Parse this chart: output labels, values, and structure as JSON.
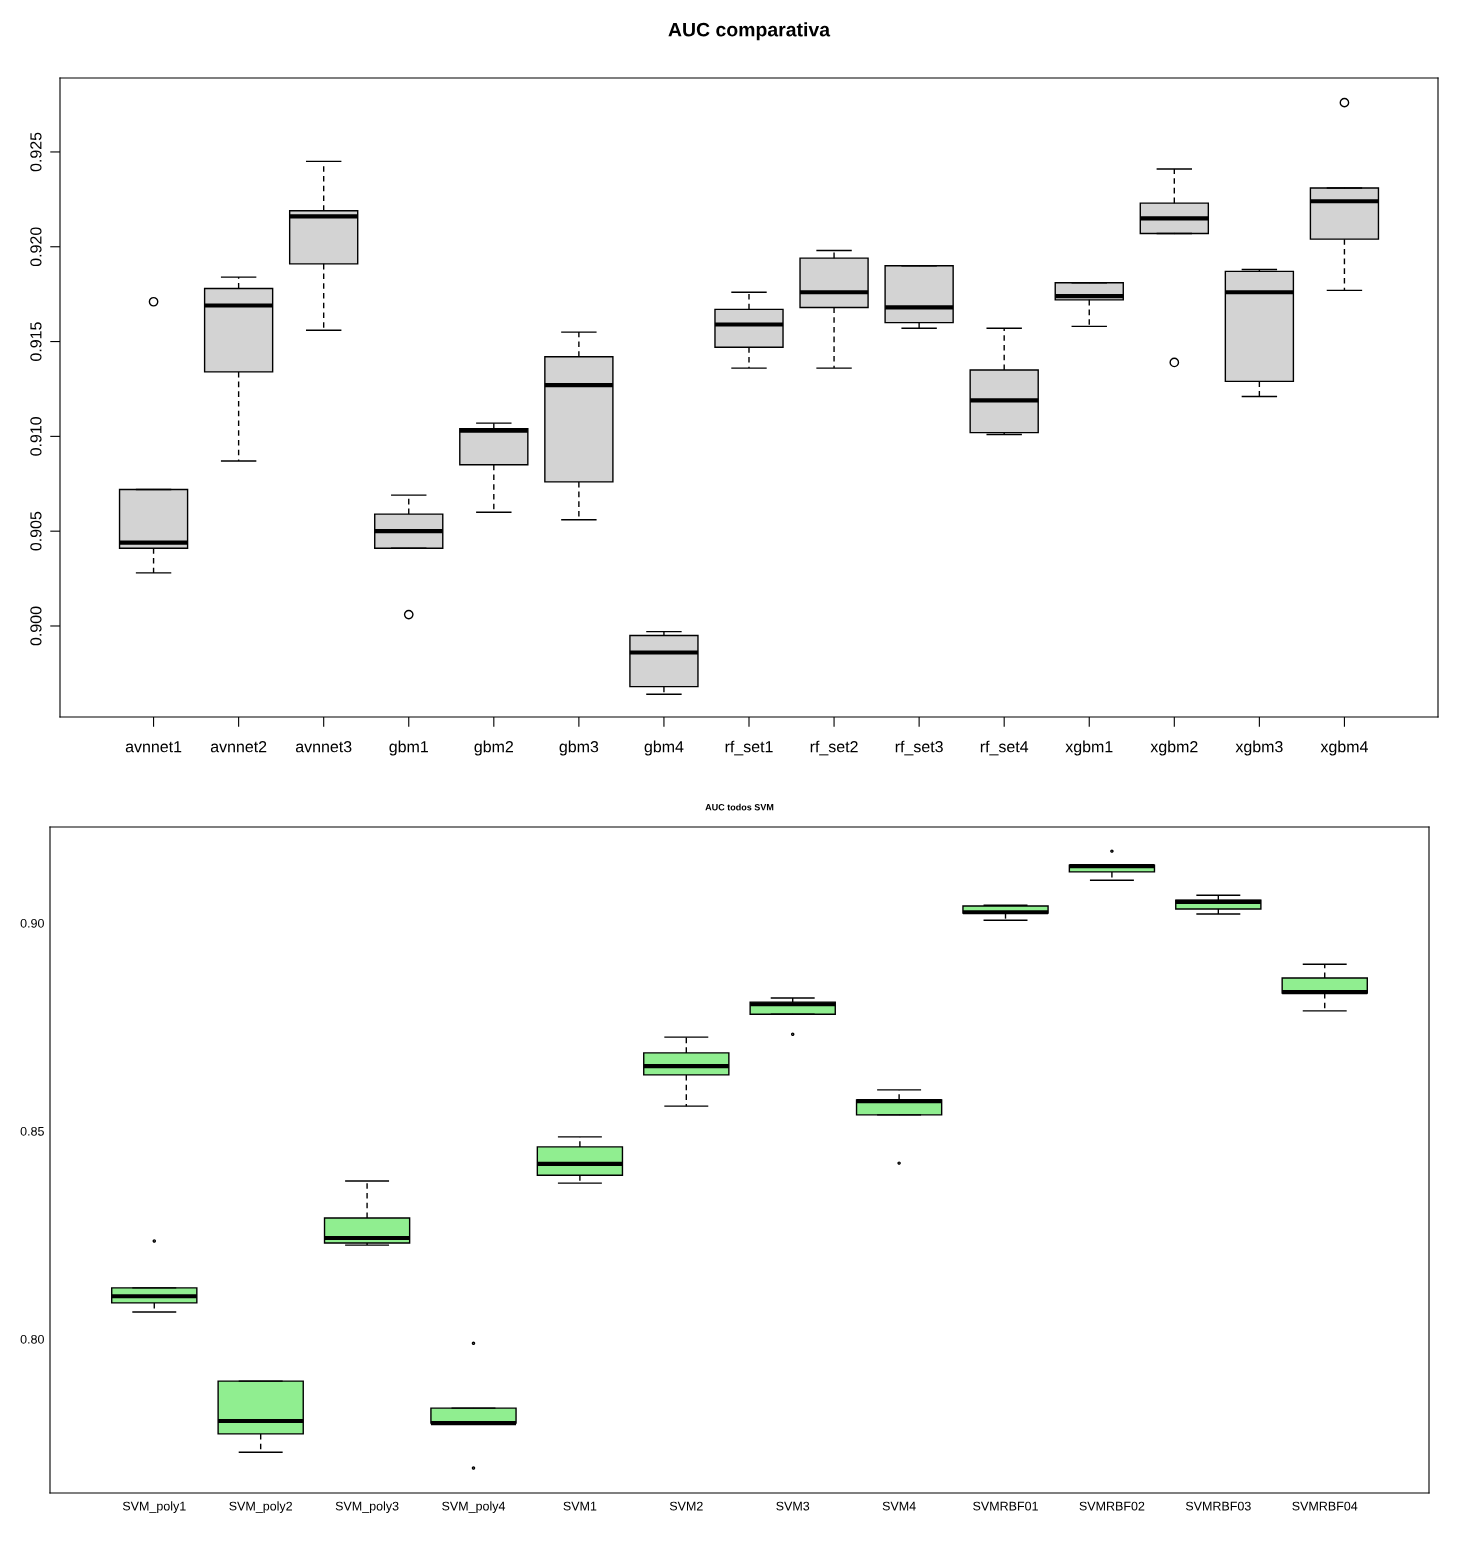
{
  "chart_data": [
    {
      "type": "box",
      "title": "AUC comparativa",
      "color": "#d3d3d3",
      "ylim": [
        0.8952,
        0.9289
      ],
      "yticks": [
        {
          "value": 0.9,
          "label": "0.900"
        },
        0.905,
        {
          "value": 0.91,
          "label": "0.910"
        },
        0.915,
        {
          "value": 0.92,
          "label": "0.920"
        },
        0.925
      ],
      "categories": [
        "avnnet1",
        "avnnet2",
        "avnnet3",
        "gbm1",
        "gbm2",
        "gbm3",
        "gbm4",
        "rf_set1",
        "rf_set2",
        "rf_set3",
        "rf_set4",
        "xgbm1",
        "xgbm2",
        "xgbm3",
        "xgbm4"
      ],
      "boxes": [
        {
          "low": 0.9028,
          "q1": 0.9041,
          "median": 0.9044,
          "q3": 0.9072,
          "high": 0.9072,
          "outliers": [
            0.9171
          ]
        },
        {
          "low": 0.9087,
          "q1": 0.9134,
          "median": 0.9169,
          "q3": 0.9178,
          "high": 0.9184
        },
        {
          "low": 0.9156,
          "q1": 0.9191,
          "median": 0.9216,
          "q3": 0.9219,
          "high": 0.9245
        },
        {
          "low": 0.9041,
          "q1": 0.9041,
          "median": 0.905,
          "q3": 0.9059,
          "high": 0.9069,
          "outliers": [
            0.9006
          ]
        },
        {
          "low": 0.906,
          "q1": 0.9085,
          "median": 0.9103,
          "q3": 0.9104,
          "high": 0.9107
        },
        {
          "low": 0.9056,
          "q1": 0.9076,
          "median": 0.9127,
          "q3": 0.9142,
          "high": 0.9155
        },
        {
          "low": 0.8964,
          "q1": 0.8968,
          "median": 0.8986,
          "q3": 0.8995,
          "high": 0.8997
        },
        {
          "low": 0.9136,
          "q1": 0.9147,
          "median": 0.9159,
          "q3": 0.9167,
          "high": 0.9176
        },
        {
          "low": 0.9136,
          "q1": 0.9168,
          "median": 0.9176,
          "q3": 0.9194,
          "high": 0.9198
        },
        {
          "low": 0.9157,
          "q1": 0.916,
          "median": 0.9168,
          "q3": 0.919,
          "high": 0.919
        },
        {
          "low": 0.9101,
          "q1": 0.9102,
          "median": 0.9119,
          "q3": 0.9135,
          "high": 0.9157
        },
        {
          "low": 0.9158,
          "q1": 0.9172,
          "median": 0.9174,
          "q3": 0.9181,
          "high": 0.9181
        },
        {
          "low": 0.9207,
          "q1": 0.9207,
          "median": 0.9215,
          "q3": 0.9223,
          "high": 0.9241,
          "outliers": [
            0.9139
          ]
        },
        {
          "low": 0.9121,
          "q1": 0.9129,
          "median": 0.9176,
          "q3": 0.9187,
          "high": 0.9188
        },
        {
          "low": 0.9177,
          "q1": 0.9204,
          "median": 0.9224,
          "q3": 0.9231,
          "high": 0.9231,
          "outliers": [
            0.9276
          ]
        }
      ]
    },
    {
      "type": "box",
      "title": "AUC todos SVM",
      "color": "#90ee90",
      "ylim": [
        0.763,
        0.9231
      ],
      "yticks": [
        {
          "value": 0.8,
          "label": "0.80"
        },
        {
          "value": 0.85,
          "label": "0.85"
        },
        {
          "value": 0.9,
          "label": "0.90"
        }
      ],
      "categories": [
        "SVM_poly1",
        "SVM_poly2",
        "SVM_poly3",
        "SVM_poly4",
        "SVM1",
        "SVM2",
        "SVM3",
        "SVM4",
        "SVMRBF01",
        "SVMRBF02",
        "SVMRBF03",
        "SVMRBF04"
      ],
      "boxes": [
        {
          "low": 0.8065,
          "q1": 0.8087,
          "median": 0.8103,
          "q3": 0.8123,
          "high": 0.8123,
          "outliers": [
            0.8236
          ]
        },
        {
          "low": 0.7728,
          "q1": 0.7772,
          "median": 0.7803,
          "q3": 0.7899,
          "high": 0.7899
        },
        {
          "low": 0.8226,
          "q1": 0.8231,
          "median": 0.8243,
          "q3": 0.8291,
          "high": 0.838
        },
        {
          "low": 0.7798,
          "q1": 0.7798,
          "median": 0.7798,
          "q3": 0.7834,
          "high": 0.7834,
          "outliers": [
            0.799,
            0.769
          ]
        },
        {
          "low": 0.8375,
          "q1": 0.8394,
          "median": 0.8421,
          "q3": 0.8462,
          "high": 0.8486
        },
        {
          "low": 0.856,
          "q1": 0.8635,
          "median": 0.8656,
          "q3": 0.8688,
          "high": 0.8726
        },
        {
          "low": 0.8781,
          "q1": 0.8781,
          "median": 0.8805,
          "q3": 0.881,
          "high": 0.882,
          "outliers": [
            0.8733
          ]
        },
        {
          "low": 0.8539,
          "q1": 0.8539,
          "median": 0.8572,
          "q3": 0.8575,
          "high": 0.8599,
          "outliers": [
            0.8423
          ]
        },
        {
          "low": 0.9007,
          "q1": 0.9024,
          "median": 0.9026,
          "q3": 0.9041,
          "high": 0.9043
        },
        {
          "low": 0.9103,
          "q1": 0.9123,
          "median": 0.9137,
          "q3": 0.9139,
          "high": 0.9139,
          "outliers": [
            0.9173
          ]
        },
        {
          "low": 0.9022,
          "q1": 0.9034,
          "median": 0.9051,
          "q3": 0.9055,
          "high": 0.9067
        },
        {
          "low": 0.8789,
          "q1": 0.8832,
          "median": 0.8834,
          "q3": 0.8868,
          "high": 0.8901
        }
      ]
    }
  ]
}
